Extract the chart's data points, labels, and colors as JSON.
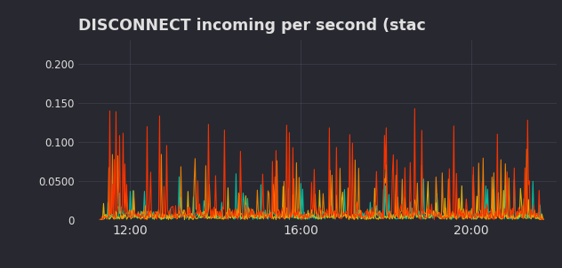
{
  "title": "DISCONNECT incoming per second (stac",
  "background_color": "#282830",
  "text_color": "#e0e0e0",
  "grid_color": "#505060",
  "yticks": [
    0,
    0.05,
    0.1,
    0.15,
    0.2
  ],
  "ytick_labels": [
    "0",
    "0.0500",
    "0.100",
    "0.150",
    "0.200"
  ],
  "xtick_labels": [
    "12:00",
    "16:00",
    "20:00"
  ],
  "xtick_positions": [
    12,
    16,
    20
  ],
  "ylim": [
    0,
    0.23
  ],
  "xlim": [
    10.8,
    22.0
  ],
  "line_colors": [
    "#ff3300",
    "#ff8800",
    "#00ccaa",
    "#ffcc00"
  ],
  "n_points": 500,
  "seed": 7
}
